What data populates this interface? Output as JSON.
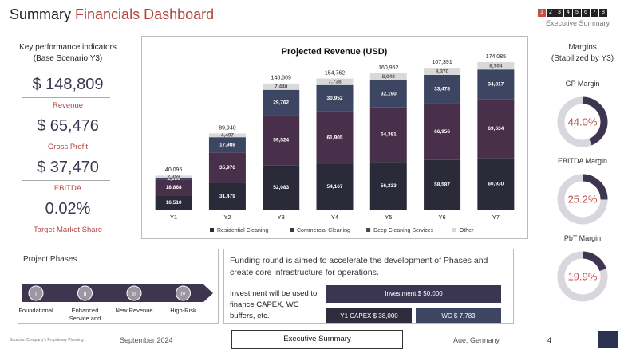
{
  "header": {
    "title_part1": "Summary",
    "title_part2": "Financials Dashboard",
    "pages": [
      "1",
      "2",
      "3",
      "4",
      "5",
      "6",
      "7",
      "8"
    ],
    "section": "Executive Summary"
  },
  "kpis": {
    "title": "Key performance indicators",
    "subtitle": "(Base Scenario Y3)",
    "items": [
      {
        "value": "$ 148,809",
        "label": "Revenue"
      },
      {
        "value": "$ 65,476",
        "label": "Gross Profit"
      },
      {
        "value": "$ 37,470",
        "label": "EBITDA"
      },
      {
        "value": "0.02%",
        "label": "Target Market Share"
      }
    ]
  },
  "chart_data": {
    "type": "bar",
    "stacked": true,
    "title": "Projected Revenue (USD)",
    "categories": [
      "Y1",
      "Y2",
      "Y3",
      "Y4",
      "Y5",
      "Y6",
      "Y7"
    ],
    "series": [
      {
        "name": "Residential Cleaning",
        "color": "#2b2a38",
        "label_color": "#ffffff",
        "values": [
          16510,
          31479,
          52083,
          54167,
          56333,
          58587,
          60930
        ],
        "value_labels": [
          "16,510",
          "31,479",
          "52,083",
          "54,167",
          "56,333",
          "58,587",
          "60,930"
        ]
      },
      {
        "name": "Commercial Cleaning",
        "color": "#48304a",
        "label_color": "#ffffff",
        "values": [
          18868,
          35976,
          59524,
          61905,
          64381,
          66956,
          69634
        ],
        "value_labels": [
          "18,868",
          "35,976",
          "59,524",
          "61,905",
          "64,381",
          "66,956",
          "69,634"
        ]
      },
      {
        "name": "Deep Cleaning Services",
        "color": "#3c4561",
        "label_color": "#ffffff",
        "values": [
          2359,
          17988,
          29762,
          30952,
          32190,
          33478,
          34817
        ],
        "value_labels": [
          "2,359",
          "17,988",
          "29,762",
          "30,952",
          "32,190",
          "33,478",
          "34,817"
        ]
      },
      {
        "name": "Other",
        "color": "#d9d9d9",
        "label_color": "#555555",
        "values": [
          2359,
          4497,
          7440,
          7738,
          8048,
          8370,
          8704
        ],
        "value_labels": [
          "2,359",
          "4,497",
          "7,440",
          "7,738",
          "8,048",
          "8,370",
          "8,704"
        ]
      }
    ],
    "totals": [
      40096,
      89940,
      148809,
      154762,
      160952,
      167391,
      174085
    ],
    "total_labels": [
      "40,096",
      "89,940",
      "148,809",
      "154,762",
      "160,952",
      "167,391",
      "174,085"
    ],
    "legend": "bottom"
  },
  "margins": {
    "title": "Margins",
    "subtitle": "(Stabilized by Y3)",
    "track_color": "#d9d6de",
    "color": "#3e3550",
    "items": [
      {
        "name": "GP Margin",
        "value": 44.0,
        "label": "44.0%"
      },
      {
        "name": "EBITDA Margin",
        "value": 25.2,
        "label": "25.2%"
      },
      {
        "name": "PbT Margin",
        "value": 19.9,
        "label": "19.9%"
      }
    ]
  },
  "phases": {
    "title": "Project Phases",
    "steps": [
      {
        "numeral": "I",
        "label": "Foundational"
      },
      {
        "numeral": "II",
        "label": "Enhanced Service and"
      },
      {
        "numeral": "III",
        "label": "New Revenue"
      },
      {
        "numeral": "IV",
        "label": "High-Risk"
      }
    ]
  },
  "funding": {
    "headline": "Funding round is aimed to accelerate the development of Phases and create core infrastructure for operations.",
    "text": "Investment will be used to finance CAPEX, WC buffers, etc.",
    "investment": "Investment $ 50,000",
    "capex": "Y1 CAPEX $ 38,000",
    "wc": "WC $ 7,783"
  },
  "footer": {
    "source": "Sources: Company's Proprietary Planning",
    "date": "September 2024",
    "section": "Executive Summary",
    "location": "Aue, Germany",
    "page": "4"
  }
}
